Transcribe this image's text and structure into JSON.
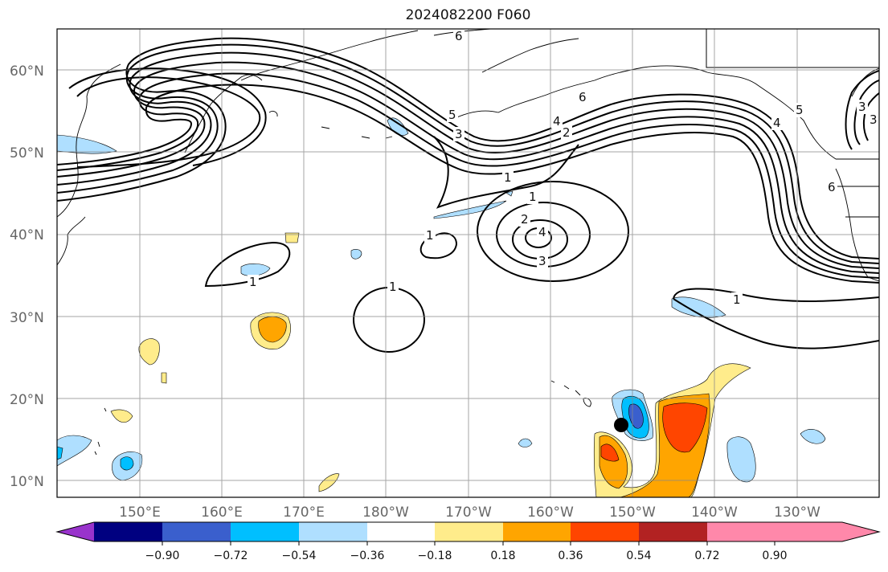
{
  "title": "2024082200 F060",
  "map": {
    "lat_ticks": [
      "60°N",
      "50°N",
      "40°N",
      "30°N",
      "20°N",
      "10°N"
    ],
    "lon_ticks": [
      "150°E",
      "160°E",
      "170°E",
      "180°W",
      "170°W",
      "160°W",
      "150°W",
      "140°W",
      "130°W"
    ],
    "gridlines": true,
    "contour_labels": [
      "6",
      "5",
      "4",
      "3",
      "2",
      "1",
      "1",
      "1",
      "1",
      "1",
      "1",
      "2",
      "3",
      "4",
      "3",
      "4",
      "5",
      "6",
      "3",
      "6"
    ]
  },
  "colorbar": {
    "tick_labels": [
      "−0.90",
      "−0.72",
      "−0.54",
      "−0.36",
      "−0.18",
      "0.18",
      "0.36",
      "0.54",
      "0.72",
      "0.90"
    ],
    "colors": [
      "#9933cc",
      "#000080",
      "#3a5fcd",
      "#00bfff",
      "#afdfff",
      "#ffffff",
      "#ffec8b",
      "#ffa500",
      "#ff4500",
      "#b22222",
      "#ff88aa"
    ]
  },
  "fill_colors": {
    "light_blue": "#afdfff",
    "cyan": "#00bfff",
    "blue": "#3a5fcd",
    "yellow": "#ffec8b",
    "orange": "#ffa500",
    "red_orange": "#ff4500"
  },
  "marker": {
    "color": "#000000"
  }
}
